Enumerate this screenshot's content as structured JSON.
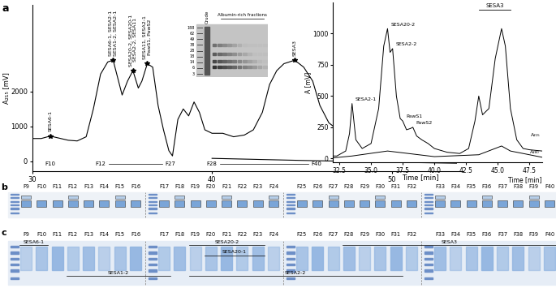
{
  "panels": [
    "a",
    "b",
    "c"
  ],
  "chart_data": [
    {
      "type": "line",
      "x_label": "Time [min]",
      "y_label": "A₂₁₅ [mV]",
      "xlim": [
        30,
        54
      ],
      "xticks": [
        30,
        40,
        50
      ],
      "ylim": [
        -300,
        4500
      ],
      "yticks": [
        0,
        1000,
        2000
      ],
      "series": [
        {
          "x": [
            30,
            30.5,
            31.0,
            31.5,
            32.0,
            32.5,
            33.0,
            33.4,
            33.8,
            34.2,
            34.5,
            34.8,
            35.0,
            35.3,
            35.6,
            35.9,
            36.1,
            36.4,
            36.7,
            37.0,
            37.3,
            37.6,
            37.8,
            38.1,
            38.4,
            38.7,
            39.0,
            39.3,
            39.6,
            40.0,
            40.6,
            41.2,
            41.8,
            42.3,
            42.8,
            43.2,
            43.6,
            44.0,
            44.6,
            45.1,
            45.6,
            46.0,
            46.5,
            47.0,
            48.0,
            49.0,
            50.0,
            51.0,
            52.0,
            53.0,
            53.6
          ],
          "values": [
            650,
            650,
            720,
            660,
            600,
            580,
            700,
            1500,
            2500,
            2850,
            2900,
            2300,
            1900,
            2300,
            2600,
            2100,
            2300,
            2800,
            2700,
            1600,
            900,
            300,
            150,
            1200,
            1500,
            1300,
            1700,
            1400,
            900,
            800,
            800,
            700,
            750,
            900,
            1400,
            2200,
            2600,
            2800,
            2900,
            2700,
            2300,
            1600,
            1100,
            900,
            700,
            600,
            500,
            400,
            350,
            300,
            300
          ],
          "color": "#000000"
        },
        {
          "x": [
            40,
            45,
            50,
            53.6
          ],
          "values": [
            80,
            20,
            -30,
            -60
          ],
          "color": "#000000"
        }
      ],
      "annotations": [
        {
          "lines": [
            "SESA6-1"
          ],
          "x": 31.0,
          "y": 720
        },
        {
          "lines": [
            "SESA6-1, SESA2-1",
            "SESA1-2, SESA2-1"
          ],
          "x": 34.5,
          "y": 2900
        },
        {
          "lines": [
            "SESA20-2, SESA20-1",
            "SESA2-2, SESA11"
          ],
          "x": 35.6,
          "y": 2600
        },
        {
          "lines": [
            "SESA11, SESA2-1",
            "PawS1, PawS2"
          ],
          "x": 36.4,
          "y": 2800
        },
        {
          "lines": [
            "SESA3"
          ],
          "x": 44.6,
          "y": 2900
        }
      ],
      "fractions": [
        {
          "labels": [
            "F10"
          ],
          "x": [
            31.0
          ]
        },
        {
          "labels": [
            "F12",
            "F27"
          ],
          "x": [
            33.8,
            37.7
          ]
        },
        {
          "labels": [
            "F28",
            "F40"
          ],
          "x": [
            40.0,
            45.8
          ]
        }
      ]
    },
    {
      "type": "line",
      "x_label": "Time [min]",
      "y_label": "A [mV]",
      "xlim": [
        32,
        48.5
      ],
      "xticks": [
        32.5,
        {
          "value": 35,
          "label": "35.0"
        },
        37.5,
        {
          "value": 40,
          "label": "40.0"
        },
        42.5,
        {
          "value": 45,
          "label": "45.0"
        },
        47.5
      ],
      "ylim": [
        -30,
        1250
      ],
      "yticks": [
        0,
        250,
        500,
        750,
        1000
      ],
      "series": [
        {
          "name": "A₂₁₅",
          "color": "#000000",
          "x": [
            32.0,
            32.3,
            33.0,
            33.3,
            33.5,
            33.8,
            34.3,
            35.0,
            35.6,
            36.0,
            36.3,
            36.5,
            36.7,
            37.0,
            37.3,
            37.5,
            37.8,
            38.1,
            38.3,
            38.6,
            39.0,
            39.5,
            40.0,
            41.0,
            42.0,
            42.7,
            43.2,
            43.5,
            43.8,
            44.3,
            44.8,
            45.3,
            45.6,
            46.0,
            46.5,
            47.0,
            47.5,
            48.5
          ],
          "values": [
            20,
            20,
            60,
            200,
            440,
            150,
            80,
            120,
            400,
            900,
            1040,
            850,
            880,
            500,
            320,
            300,
            230,
            240,
            250,
            180,
            150,
            120,
            80,
            50,
            40,
            80,
            300,
            500,
            350,
            400,
            800,
            1040,
            900,
            400,
            150,
            80,
            70,
            60
          ]
        },
        {
          "name": "A₂₈₀",
          "color": "#000000",
          "x": [
            32.0,
            33.5,
            36.3,
            40.0,
            43.5,
            45.3,
            46.0,
            48.5
          ],
          "values": [
            5,
            20,
            60,
            15,
            30,
            100,
            60,
            10
          ]
        }
      ],
      "annotations": [
        {
          "lines": [
            "SESA2-1"
          ],
          "x": 33.5,
          "y": 440
        },
        {
          "lines": [
            "SESA20-2"
          ],
          "x": 36.3,
          "y": 1040
        },
        {
          "lines": [
            "SESA2-2"
          ],
          "x": 36.7,
          "y": 880
        },
        {
          "lines": [
            "PawS1"
          ],
          "x": 37.5,
          "y": 300
        },
        {
          "lines": [
            "PawS2"
          ],
          "x": 38.3,
          "y": 250
        }
      ],
      "regions": [
        {
          "label": "SESA3",
          "start": 43.5,
          "end": 46.0
        }
      ]
    }
  ],
  "gel_inset": {
    "lanes": [
      "Crude"
    ],
    "markers": [
      188,
      62,
      49,
      38,
      28,
      18,
      14,
      6,
      3
    ],
    "label": "Albumin-rich fractions"
  },
  "gels": [
    {
      "panel": "b",
      "lanes": [
        "F9",
        "F10",
        "F11",
        "F12",
        "F13",
        "F14",
        "F15",
        "F16",
        "F17",
        "F18",
        "F19",
        "F20",
        "F21",
        "F22",
        "F23",
        "F24",
        "F25",
        "F26",
        "F27",
        "F28",
        "F29",
        "F30",
        "F31",
        "F32",
        "F33",
        "F34",
        "F35",
        "F36",
        "F37",
        "F38",
        "F39",
        "F40"
      ]
    },
    {
      "panel": "c",
      "lanes": [
        "F9",
        "F10",
        "F11",
        "F12",
        "F13",
        "F14",
        "F15",
        "F16",
        "F17",
        "F18",
        "F19",
        "F20",
        "F21",
        "F22",
        "F23",
        "F24",
        "F25",
        "F26",
        "F27",
        "F28",
        "F29",
        "F30",
        "F31",
        "F32",
        "F33",
        "F34",
        "F35",
        "F36",
        "F37",
        "F38",
        "F39",
        "F40"
      ],
      "annotations": [
        {
          "text": "SESA6-1",
          "from": "F9",
          "to": "F10"
        },
        {
          "text": "SESA1-2",
          "from": "F12",
          "to": "F17"
        },
        {
          "text": "SESA20-2",
          "from": "F19",
          "to": "F23"
        },
        {
          "text": "SESA20-1",
          "from": "F20",
          "to": "F23"
        },
        {
          "text": "SESA2-2",
          "from": "F19",
          "to": "F31"
        },
        {
          "text": "SESA3",
          "from": "F28",
          "to": "F40"
        }
      ]
    }
  ]
}
